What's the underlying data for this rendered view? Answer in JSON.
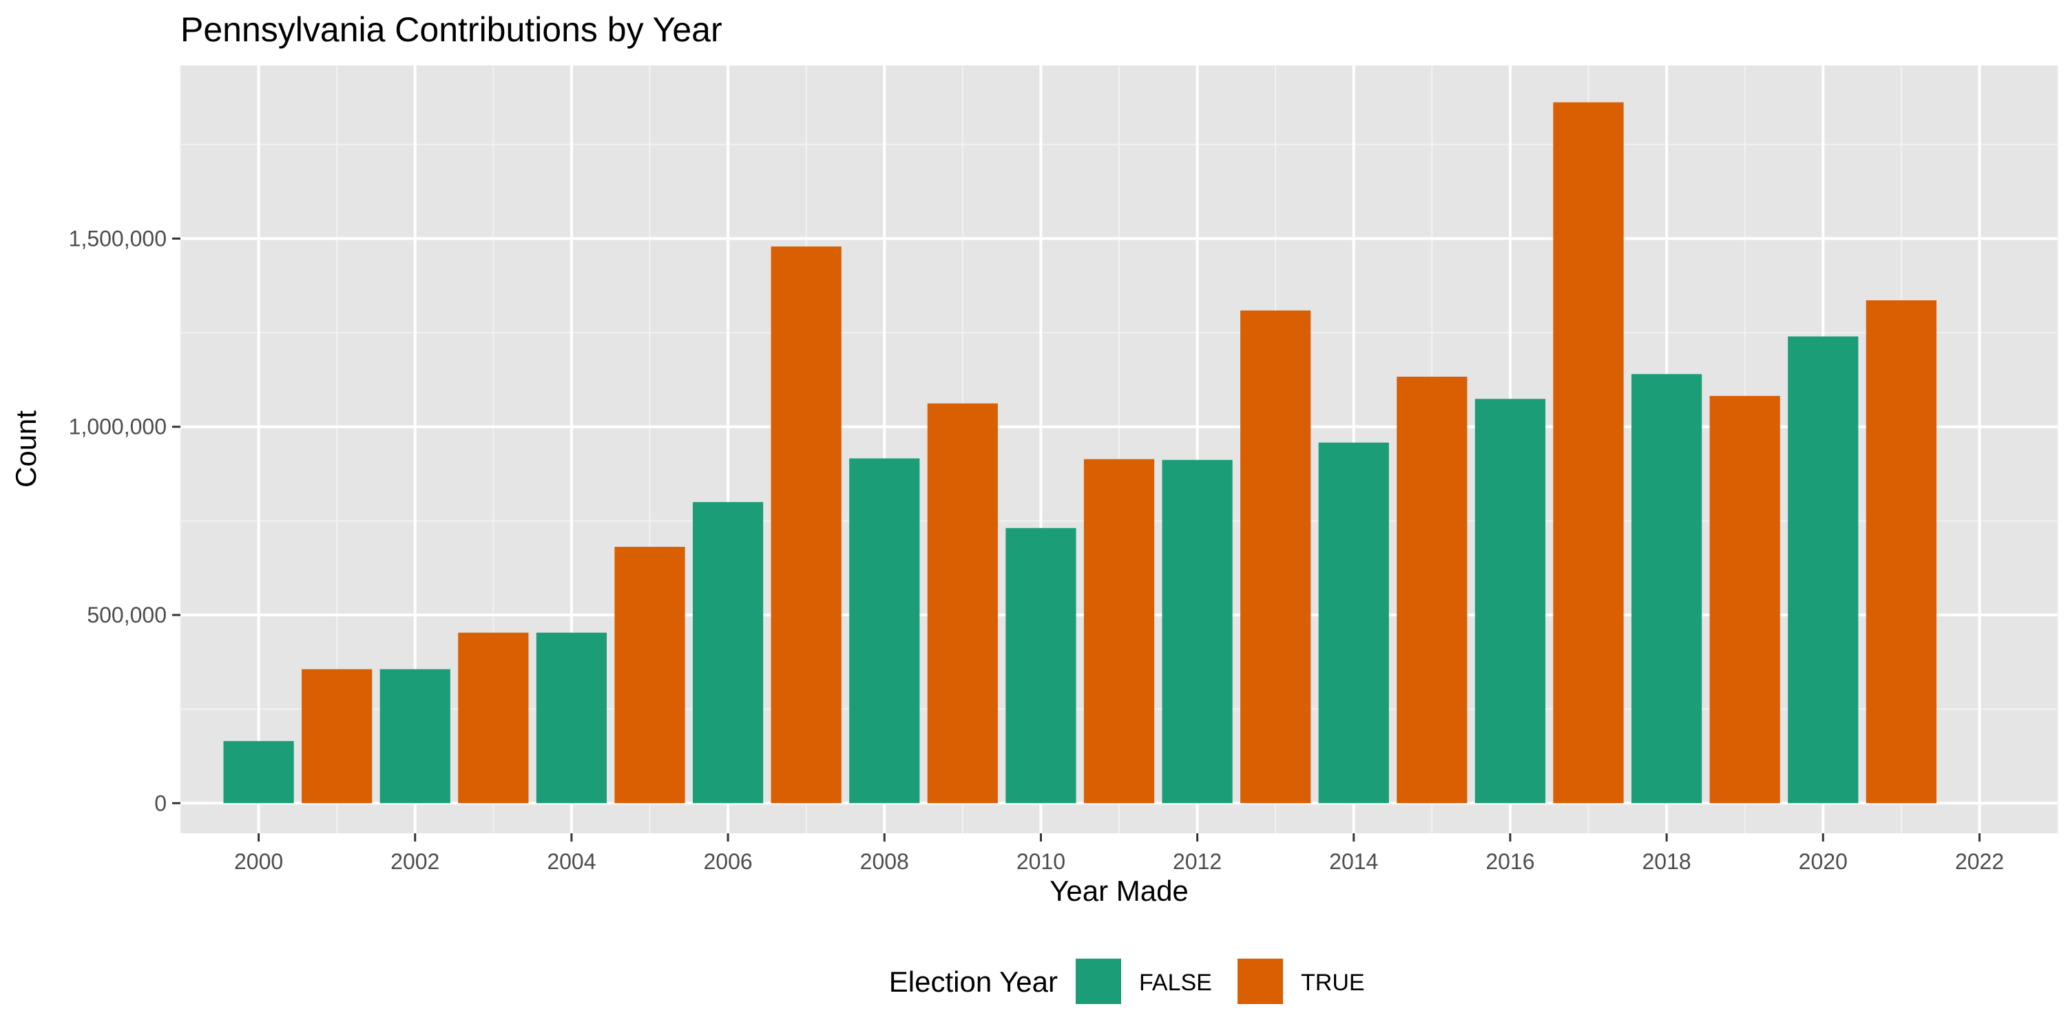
{
  "chart_data": {
    "type": "bar",
    "title": "Pennsylvania Contributions by Year",
    "xlabel": "Year Made",
    "ylabel": "Count",
    "xlim": [
      1999,
      2023
    ],
    "ylim": [
      -80000,
      1960000
    ],
    "x_ticks": [
      "2000",
      "2002",
      "2004",
      "2006",
      "2008",
      "2010",
      "2012",
      "2014",
      "2016",
      "2018",
      "2020",
      "2022"
    ],
    "y_ticks": [
      "0",
      "500,000",
      "1,000,000",
      "1,500,000"
    ],
    "grid": true,
    "legend": {
      "title": "Election Year",
      "placement": "bottom",
      "entries": [
        {
          "label": "FALSE",
          "color": "#1B9E77"
        },
        {
          "label": "TRUE",
          "color": "#D95F02"
        }
      ]
    },
    "bars": [
      {
        "x": 2000,
        "value": 165000,
        "group": "FALSE"
      },
      {
        "x": 2001,
        "value": 356000,
        "group": "TRUE"
      },
      {
        "x": 2002,
        "value": 356000,
        "group": "FALSE"
      },
      {
        "x": 2003,
        "value": 453000,
        "group": "TRUE"
      },
      {
        "x": 2004,
        "value": 453000,
        "group": "FALSE"
      },
      {
        "x": 2005,
        "value": 681000,
        "group": "TRUE"
      },
      {
        "x": 2006,
        "value": 800000,
        "group": "FALSE"
      },
      {
        "x": 2007,
        "value": 1479000,
        "group": "TRUE"
      },
      {
        "x": 2008,
        "value": 916000,
        "group": "FALSE"
      },
      {
        "x": 2009,
        "value": 1062000,
        "group": "TRUE"
      },
      {
        "x": 2010,
        "value": 731000,
        "group": "FALSE"
      },
      {
        "x": 2011,
        "value": 914000,
        "group": "TRUE"
      },
      {
        "x": 2012,
        "value": 912000,
        "group": "FALSE"
      },
      {
        "x": 2013,
        "value": 1309000,
        "group": "TRUE"
      },
      {
        "x": 2014,
        "value": 958000,
        "group": "FALSE"
      },
      {
        "x": 2015,
        "value": 1133000,
        "group": "TRUE"
      },
      {
        "x": 2016,
        "value": 1074000,
        "group": "FALSE"
      },
      {
        "x": 2017,
        "value": 1862000,
        "group": "TRUE"
      },
      {
        "x": 2018,
        "value": 1140000,
        "group": "FALSE"
      },
      {
        "x": 2019,
        "value": 1082000,
        "group": "TRUE"
      },
      {
        "x": 2020,
        "value": 1240000,
        "group": "FALSE"
      },
      {
        "x": 2021,
        "value": 1336000,
        "group": "TRUE"
      }
    ]
  }
}
